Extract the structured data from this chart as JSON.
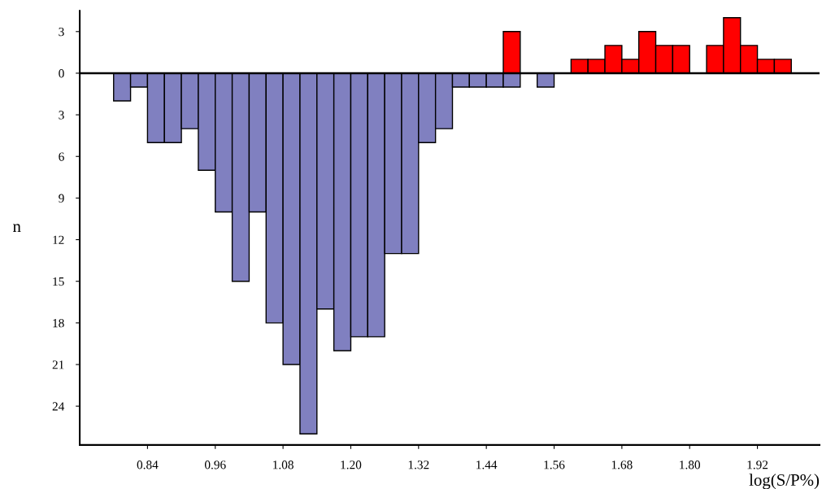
{
  "chart_data": {
    "type": "histogram",
    "xlabel": "log(S/P%)",
    "ylabel": "n",
    "bins": [
      0.78,
      0.81,
      0.84,
      0.87,
      0.9,
      0.93,
      0.96,
      0.99,
      1.02,
      1.05,
      1.08,
      1.11,
      1.14,
      1.17,
      1.2,
      1.23,
      1.26,
      1.29,
      1.32,
      1.35,
      1.38,
      1.41,
      1.44,
      1.47,
      1.5,
      1.53,
      1.56,
      1.59,
      1.62,
      1.65,
      1.68,
      1.71,
      1.74,
      1.77,
      1.8,
      1.83,
      1.86,
      1.89,
      1.92,
      1.95,
      1.98
    ],
    "series": [
      {
        "color": "#8080c0",
        "values": [
          -2,
          -1,
          -5,
          -5,
          -4,
          -7,
          -10,
          -15,
          -10,
          -18,
          -21,
          -26,
          -17,
          -20,
          -19,
          -19,
          -13,
          -13,
          -5,
          -4,
          -1,
          -1,
          -1,
          -1,
          0,
          -1,
          0,
          0,
          0,
          0,
          0,
          0,
          0,
          0,
          0,
          0,
          0,
          0,
          0,
          0
        ]
      },
      {
        "color": "#ff0000",
        "values": [
          0,
          0,
          0,
          0,
          0,
          0,
          0,
          0,
          0,
          0,
          0,
          0,
          0,
          0,
          0,
          0,
          0,
          0,
          0,
          0,
          0,
          0,
          0,
          3,
          0,
          0,
          0,
          1,
          1,
          2,
          1,
          3,
          2,
          2,
          0,
          2,
          4,
          2,
          1,
          1
        ]
      }
    ],
    "xlim": [
      0.72,
      2.03
    ],
    "xticks": [
      0.84,
      0.96,
      1.08,
      {
        "value": 1.2,
        "label": "1.20"
      },
      1.32,
      1.44,
      1.56,
      1.68,
      {
        "value": 1.8,
        "label": "1.80"
      },
      1.92
    ],
    "ylim": [
      -26.8,
      4.5
    ],
    "yticks": [
      {
        "value": 3,
        "label": "3"
      },
      0,
      {
        "value": -3,
        "label": "3"
      },
      {
        "value": -6,
        "label": "6"
      },
      {
        "value": -9,
        "label": "9"
      },
      {
        "value": -12,
        "label": "12"
      },
      {
        "value": -15,
        "label": "15"
      },
      {
        "value": -18,
        "label": "18"
      },
      {
        "value": -21,
        "label": "21"
      },
      {
        "value": -24,
        "label": "24"
      }
    ],
    "ref_lines": [
      {
        "axis": "y",
        "value": 0,
        "color": "#000000"
      }
    ],
    "grid": false,
    "legend": false
  }
}
